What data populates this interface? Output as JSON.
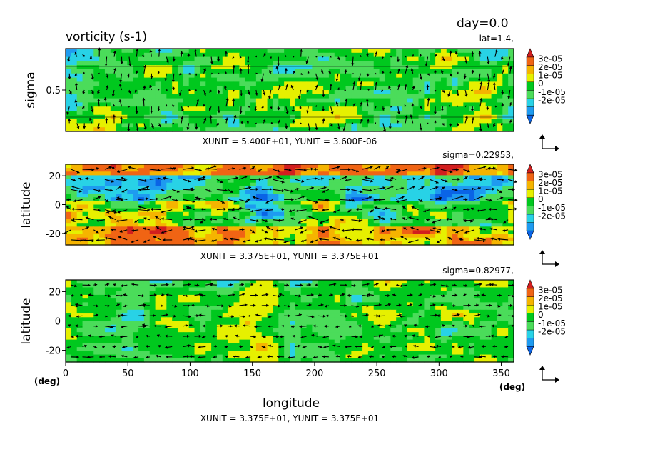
{
  "title": "vorticity (s-1)",
  "day_label": "day=0.0",
  "xlabel": "longitude",
  "colorbar": {
    "labels": [
      "3e-05",
      "2e-05",
      "1e-05",
      "0",
      "-1e-05",
      "-2e-05"
    ],
    "colors": [
      "#0a64e6",
      "#1e9bf0",
      "#28d2e6",
      "#4bdc5a",
      "#00c81e",
      "#e6f000",
      "#f5b400",
      "#f06414",
      "#d21e1e"
    ]
  },
  "chart_data": [
    {
      "type": "heatmap",
      "panel": "top",
      "ylabel": "sigma",
      "slice_label": "lat=1.4,",
      "unit_label": "XUNIT = 5.400E+01, YUNIT = 3.600E-06",
      "xlim": [
        0,
        360
      ],
      "ylim": [
        0,
        1
      ],
      "y_ticks": [
        {
          "value": 0.5,
          "label": "0.5"
        }
      ],
      "vectors": true
    },
    {
      "type": "heatmap",
      "panel": "middle",
      "ylabel": "latitude",
      "slice_label": "sigma=0.22953,",
      "unit_label": "XUNIT = 3.375E+01, YUNIT = 3.375E+01",
      "xlim": [
        0,
        360
      ],
      "ylim": [
        -28,
        28
      ],
      "y_ticks": [
        {
          "value": 20,
          "label": "20"
        },
        {
          "value": 0,
          "label": "0"
        },
        {
          "value": -20,
          "label": "-20"
        }
      ],
      "vectors": true
    },
    {
      "type": "heatmap",
      "panel": "bottom",
      "ylabel": "latitude",
      "slice_label": "sigma=0.82977,",
      "unit_label": "XUNIT = 3.375E+01, YUNIT = 3.375E+01",
      "xlim": [
        0,
        360
      ],
      "ylim": [
        -28,
        28
      ],
      "y_ticks": [
        {
          "value": 20,
          "label": "20"
        },
        {
          "value": 0,
          "label": "0"
        },
        {
          "value": -20,
          "label": "-20"
        }
      ],
      "x_ticks": [
        {
          "value": 0,
          "label": "0"
        },
        {
          "value": 50,
          "label": "50"
        },
        {
          "value": 100,
          "label": "100"
        },
        {
          "value": 150,
          "label": "150"
        },
        {
          "value": 200,
          "label": "200"
        },
        {
          "value": 250,
          "label": "250"
        },
        {
          "value": 300,
          "label": "300"
        },
        {
          "value": 350,
          "label": "350"
        }
      ],
      "x_unit_left": "(deg)",
      "x_unit_right": "(deg)",
      "vectors": true
    }
  ]
}
